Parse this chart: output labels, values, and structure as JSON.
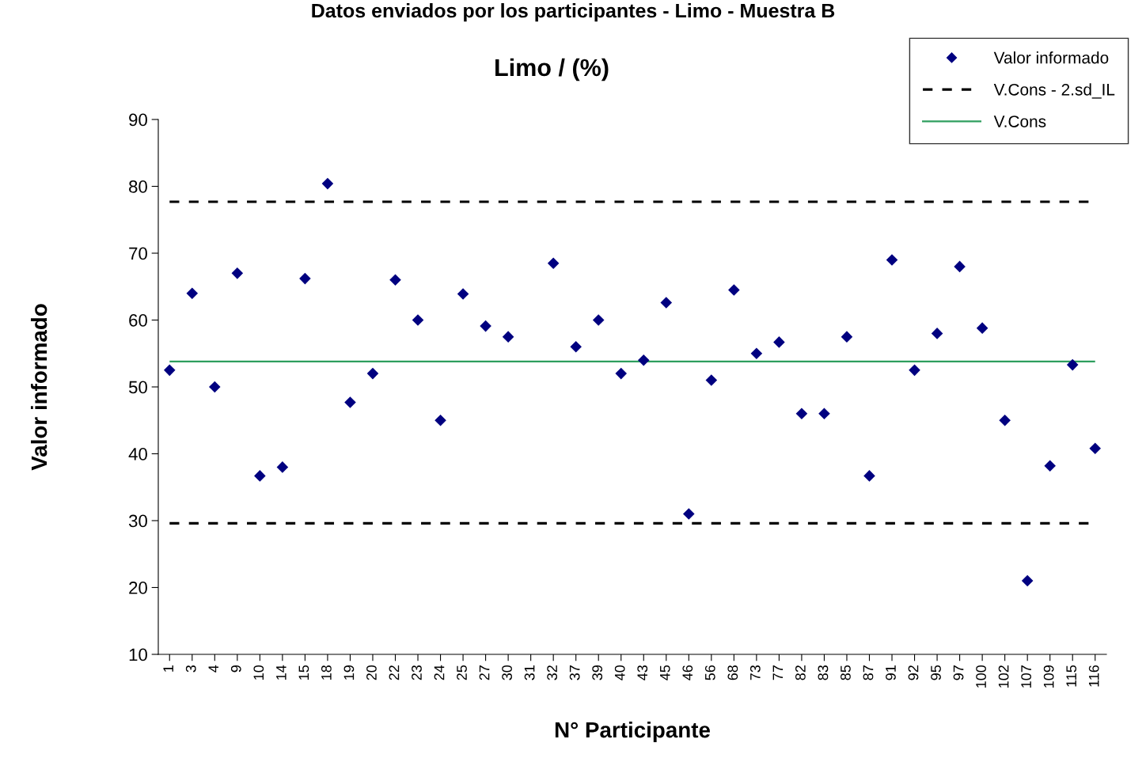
{
  "chart_data": {
    "type": "scatter",
    "title": "Datos enviados por los participantes - Limo - Muestra B",
    "subtitle": "Limo / (%)",
    "xlabel": "N° Participante",
    "ylabel": "Valor informado",
    "categories": [
      "1",
      "3",
      "4",
      "9",
      "10",
      "14",
      "15",
      "18",
      "19",
      "20",
      "22",
      "23",
      "24",
      "25",
      "27",
      "30",
      "31",
      "32",
      "37",
      "39",
      "40",
      "43",
      "45",
      "46",
      "56",
      "68",
      "73",
      "77",
      "82",
      "83",
      "85",
      "87",
      "91",
      "92",
      "95",
      "97",
      "100",
      "102",
      "107",
      "109",
      "115",
      "116"
    ],
    "series": [
      {
        "name": "Valor informado",
        "color": "#000080",
        "values": [
          52.5,
          64,
          50,
          67,
          36.7,
          38,
          66.2,
          80.4,
          47.7,
          52,
          66,
          60,
          45,
          63.9,
          59.1,
          57.5,
          null,
          68.5,
          56,
          60,
          52,
          54,
          62.6,
          31,
          51,
          64.5,
          55,
          56.7,
          46,
          46,
          57.5,
          36.7,
          69,
          52.5,
          58,
          68,
          58.8,
          45,
          21,
          38.2,
          53.3,
          40.8
        ]
      }
    ],
    "ref_lines": [
      {
        "axis": "y",
        "value": 29.6,
        "label": "V.Cons - 2.sd_IL",
        "color": "#000000",
        "line_style": "dashed"
      },
      {
        "axis": "y",
        "value": 77.7,
        "color": "#000000",
        "line_style": "dashed"
      },
      {
        "axis": "y",
        "value": 53.8,
        "label": "V.Cons",
        "color": "#2e9e5e",
        "line_style": "solid"
      }
    ],
    "ylim": [
      10,
      90
    ],
    "yticks": [
      10,
      20,
      30,
      40,
      50,
      60,
      70,
      80,
      90
    ],
    "marker": "diamond",
    "grid": false,
    "legend": "top right"
  }
}
